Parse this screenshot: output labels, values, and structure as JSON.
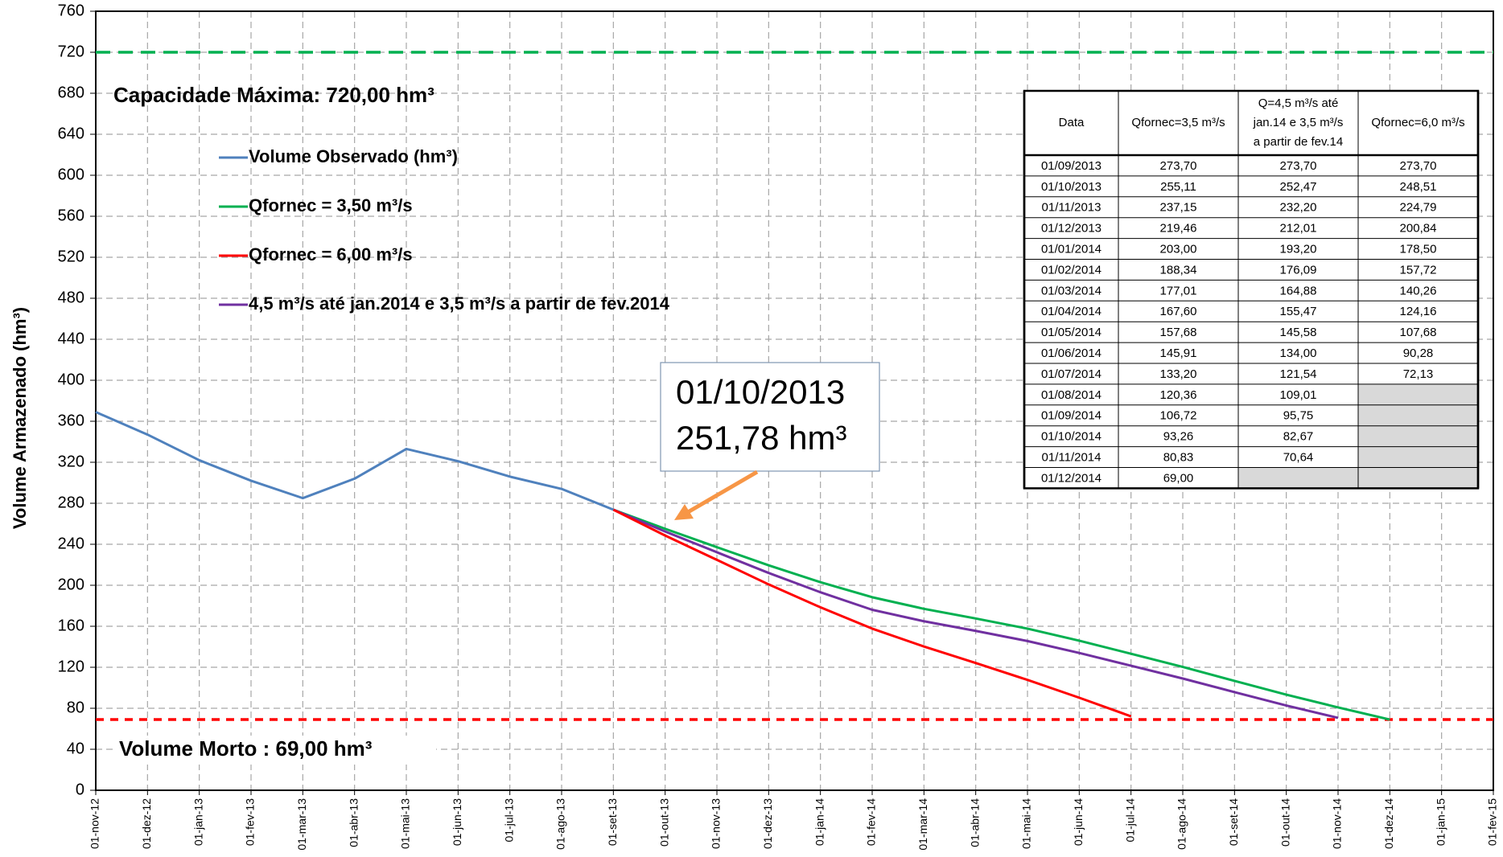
{
  "chart_data": {
    "type": "line",
    "ylabel": "Volume  Armazenado (hm³)",
    "categories": [
      "01-nov-12",
      "01-dez-12",
      "01-jan-13",
      "01-fev-13",
      "01-mar-13",
      "01-abr-13",
      "01-mai-13",
      "01-jun-13",
      "01-jul-13",
      "01-ago-13",
      "01-set-13",
      "01-out-13",
      "01-nov-13",
      "01-dez-13",
      "01-jan-14",
      "01-fev-14",
      "01-mar-14",
      "01-abr-14",
      "01-mai-14",
      "01-jun-14",
      "01-jul-14",
      "01-ago-14",
      "01-set-14",
      "01-out-14",
      "01-nov-14",
      "01-dez-14",
      "01-jan-15",
      "01-fev-15"
    ],
    "ylim": [
      0,
      760
    ],
    "yticks": [
      0,
      40,
      80,
      120,
      160,
      200,
      240,
      280,
      320,
      360,
      400,
      440,
      480,
      520,
      560,
      600,
      640,
      680,
      720,
      760
    ],
    "grid": true,
    "series": [
      {
        "name": "Volume Observado (hm³)",
        "color": "#4f81bd",
        "values": [
          369,
          347,
          322,
          302,
          285,
          304,
          333,
          321,
          306,
          294,
          273.7,
          null,
          null,
          null,
          null,
          null,
          null,
          null,
          null,
          null,
          null,
          null,
          null,
          null,
          null,
          null,
          null,
          null
        ]
      },
      {
        "name": "Qfornec = 3,50 m³/s",
        "color": "#00b050",
        "values": [
          null,
          null,
          null,
          null,
          null,
          null,
          null,
          null,
          null,
          null,
          273.7,
          255.11,
          237.15,
          219.46,
          203.0,
          188.34,
          177.01,
          167.6,
          157.68,
          145.91,
          133.2,
          120.36,
          106.72,
          93.26,
          80.83,
          69.0,
          null,
          null
        ],
        "value_labels": [
          null,
          null,
          null,
          null,
          null,
          null,
          null,
          null,
          null,
          null,
          "273,70",
          "255,11",
          "237,15",
          "219,46",
          "203,00",
          "188,34",
          "177,01",
          "167,60",
          "157,68",
          "145,91",
          "133,20",
          "120,36",
          "106,72",
          "93,26",
          "80,83",
          "69,00",
          null,
          null
        ]
      },
      {
        "name": "Qfornec = 6,00 m³/s",
        "color": "#ff0000",
        "values": [
          null,
          null,
          null,
          null,
          null,
          null,
          null,
          null,
          null,
          null,
          273.7,
          248.51,
          224.79,
          200.84,
          178.5,
          157.72,
          140.26,
          124.16,
          107.68,
          90.28,
          72.13,
          null,
          null,
          null,
          null,
          null,
          null,
          null
        ],
        "value_labels": [
          null,
          null,
          null,
          null,
          null,
          null,
          null,
          null,
          null,
          null,
          "273,70",
          "248,51",
          "224,79",
          "200,84",
          "178,50",
          "157,72",
          "140,26",
          "124,16",
          "107,68",
          "90,28",
          "72,13",
          null,
          null,
          null,
          null,
          null,
          null,
          null
        ]
      },
      {
        "name": "4,5 m³/s até jan.2014 e 3,5 m³/s a partir de fev.2014",
        "color": "#7030a0",
        "values": [
          null,
          null,
          null,
          null,
          null,
          null,
          null,
          null,
          null,
          null,
          273.7,
          252.47,
          232.2,
          212.01,
          193.2,
          176.09,
          164.88,
          155.47,
          145.58,
          134.0,
          121.54,
          109.01,
          95.75,
          82.67,
          70.64,
          null,
          null,
          null
        ],
        "value_labels": [
          null,
          null,
          null,
          null,
          null,
          null,
          null,
          null,
          null,
          null,
          "273,70",
          "252,47",
          "232,20",
          "212,01",
          "193,20",
          "176,09",
          "164,88",
          "155,47",
          "145,58",
          "134,00",
          "121,54",
          "109,01",
          "95,75",
          "82,67",
          "70,64",
          null,
          null,
          null
        ]
      }
    ],
    "hlines": [
      {
        "value": 720,
        "color": "#00b050",
        "label": "Capacidade Máxima: 720,00 hm³"
      },
      {
        "value": 69,
        "color": "#ff0000",
        "label": "Volume Morto : 69,00 hm³"
      }
    ],
    "callout": [
      "01/10/2013",
      "251,78 hm³"
    ],
    "table": {
      "columns": [
        [
          "Data"
        ],
        [
          "Qfornec=3,5 m³/s"
        ],
        [
          "Q=4,5 m³/s até",
          "jan.14 e 3,5 m³/s",
          "a partir de fev.14"
        ],
        [
          "Qfornec=6,0 m³/s"
        ]
      ],
      "rows": [
        "01/09/2013",
        "01/10/2013",
        "01/11/2013",
        "01/12/2013",
        "01/01/2014",
        "01/02/2014",
        "01/03/2014",
        "01/04/2014",
        "01/05/2014",
        "01/06/2014",
        "01/07/2014",
        "01/08/2014",
        "01/09/2014",
        "01/10/2014",
        "01/11/2014",
        "01/12/2014"
      ]
    }
  }
}
